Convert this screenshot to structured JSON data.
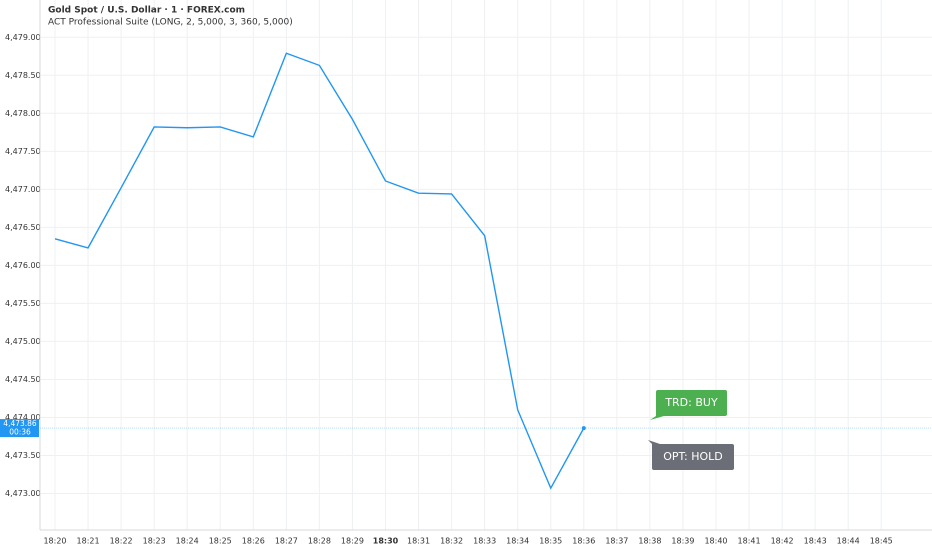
{
  "chart_data": {
    "type": "line",
    "title": "Gold Spot / U.S. Dollar · 1 · FOREX.com",
    "subtitle": "ACT Professional Suite (LONG, 2, 5,000, 3, 360, 5,000)",
    "categories": [
      "18:20",
      "18:21",
      "18:22",
      "18:23",
      "18:24",
      "18:25",
      "18:26",
      "18:27",
      "18:28",
      "18:29",
      "18:30",
      "18:31",
      "18:32",
      "18:33",
      "18:34",
      "18:35",
      "18:36",
      "18:37",
      "18:38",
      "18:39",
      "18:40",
      "18:41",
      "18:42",
      "18:43",
      "18:44",
      "18:45"
    ],
    "values": [
      4476.35,
      4476.23,
      4477.02,
      4477.82,
      4477.81,
      4477.82,
      4477.69,
      4478.79,
      4478.63,
      4477.92,
      4477.11,
      4476.95,
      4476.94,
      4476.39,
      4474.1,
      4473.07,
      4473.86,
      null,
      null,
      null,
      null,
      null,
      null,
      null,
      null,
      null
    ],
    "value_labels": [
      null,
      null,
      null,
      null,
      null,
      null,
      null,
      null,
      null,
      null,
      null,
      null,
      null,
      null,
      null,
      null,
      "4,473.86",
      null,
      null,
      null,
      null,
      null,
      null,
      null,
      null,
      null
    ],
    "countdown": "00:36",
    "color": "#2196f3",
    "bold_tick_index": 10,
    "ylim": [
      4472.52,
      4479.49
    ],
    "yticks": [
      {
        "value": 4473,
        "label": "4,473.00"
      },
      {
        "value": 4473.5,
        "label": "4,473.50"
      },
      {
        "value": 4474,
        "label": "4,474.00"
      },
      {
        "value": 4474.5,
        "label": "4,474.50"
      },
      {
        "value": 4475,
        "label": "4,475.00"
      },
      {
        "value": 4475.5,
        "label": "4,475.50"
      },
      {
        "value": 4476,
        "label": "4,476.00"
      },
      {
        "value": 4476.5,
        "label": "4,476.50"
      },
      {
        "value": 4477,
        "label": "4,477.00"
      },
      {
        "value": 4477.5,
        "label": "4,477.50"
      },
      {
        "value": 4478,
        "label": "4,478.00"
      },
      {
        "value": 4478.5,
        "label": "4,478.50"
      },
      {
        "value": 4479,
        "label": "4,479.00"
      }
    ],
    "grid": true,
    "annotations": [
      {
        "text": "TRD: BUY",
        "color": "#4caf50"
      },
      {
        "text": "OPT: HOLD",
        "color": "#6b6e76"
      }
    ]
  }
}
